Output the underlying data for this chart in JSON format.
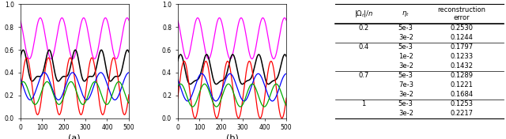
{
  "plot_a": {
    "xlim": [
      0,
      500
    ],
    "ylim": [
      0,
      1
    ],
    "xlabel": "(a)",
    "xticks": [
      0,
      100,
      200,
      300,
      400,
      500
    ],
    "yticks": [
      0,
      0.2,
      0.4,
      0.6,
      0.8,
      1.0
    ]
  },
  "plot_b": {
    "xlim": [
      0,
      500
    ],
    "ylim": [
      0,
      1
    ],
    "xlabel": "(b)",
    "xticks": [
      0,
      100,
      200,
      300,
      400,
      500
    ],
    "yticks": [
      0,
      0.2,
      0.4,
      0.6,
      0.8,
      1.0
    ]
  },
  "colors": {
    "magenta": "#FF00FF",
    "black": "#000000",
    "red": "#FF0000",
    "blue": "#0000FF",
    "green": "#00AA00"
  },
  "table": {
    "col_headers": [
      "$|\\Omega_t|/n$",
      "$\\eta_t$",
      "reconstruction\nerror"
    ],
    "rows": [
      [
        "0.2",
        "5e-3",
        "0.2530"
      ],
      [
        "",
        "3e-2",
        "0.1244"
      ],
      [
        "0.4",
        "5e-3",
        "0.1797"
      ],
      [
        "",
        "1e-2",
        "0.1233"
      ],
      [
        "",
        "3e-2",
        "0.1432"
      ],
      [
        "0.7",
        "5e-3",
        "0.1289"
      ],
      [
        "",
        "7e-3",
        "0.1221"
      ],
      [
        "",
        "3e-2",
        "0.1684"
      ],
      [
        "1",
        "5e-3",
        "0.1253"
      ],
      [
        "",
        "3e-2",
        "0.2217"
      ]
    ],
    "group_ends": [
      1,
      4,
      7,
      9
    ]
  }
}
